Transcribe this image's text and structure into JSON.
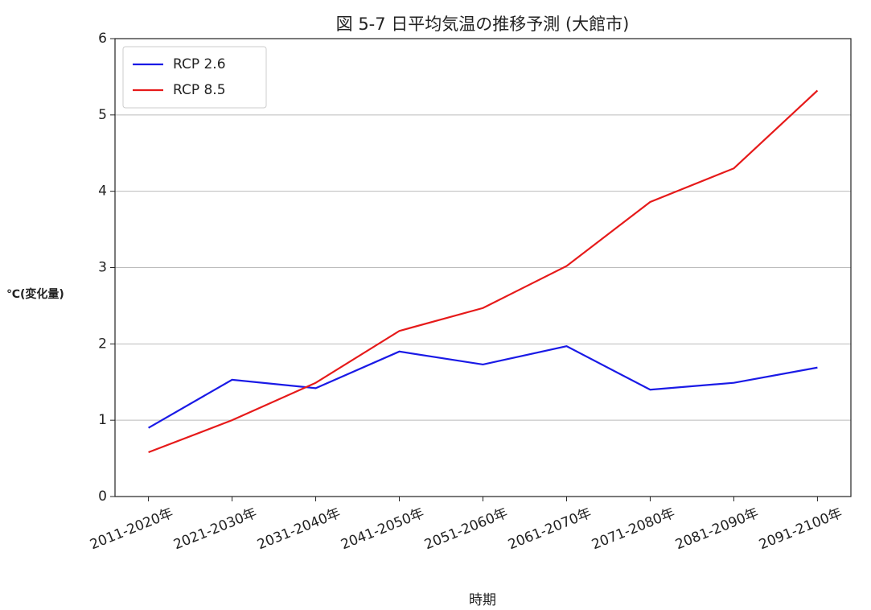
{
  "chart_data": {
    "type": "line",
    "title": "図 5-7 日平均気温の推移予測 (大館市)",
    "x_label": "時期",
    "y_label": "℃(変化量)",
    "categories": [
      "2011-2020年",
      "2021-2030年",
      "2031-2040年",
      "2041-2050年",
      "2051-2060年",
      "2061-2070年",
      "2071-2080年",
      "2081-2090年",
      "2091-2100年"
    ],
    "series": [
      {
        "name": "RCP 2.6",
        "color": "#1a1ae6",
        "values": [
          0.9,
          1.53,
          1.42,
          1.9,
          1.73,
          1.97,
          1.4,
          1.49,
          1.69
        ]
      },
      {
        "name": "RCP 8.5",
        "color": "#e61a1a",
        "values": [
          0.58,
          1.0,
          1.49,
          2.17,
          2.47,
          3.02,
          3.86,
          4.3,
          5.32
        ]
      }
    ],
    "ylim": [
      0,
      6
    ],
    "yticks": [
      0,
      1,
      2,
      3,
      4,
      5,
      6
    ],
    "grid": true,
    "legend": "upper left"
  }
}
